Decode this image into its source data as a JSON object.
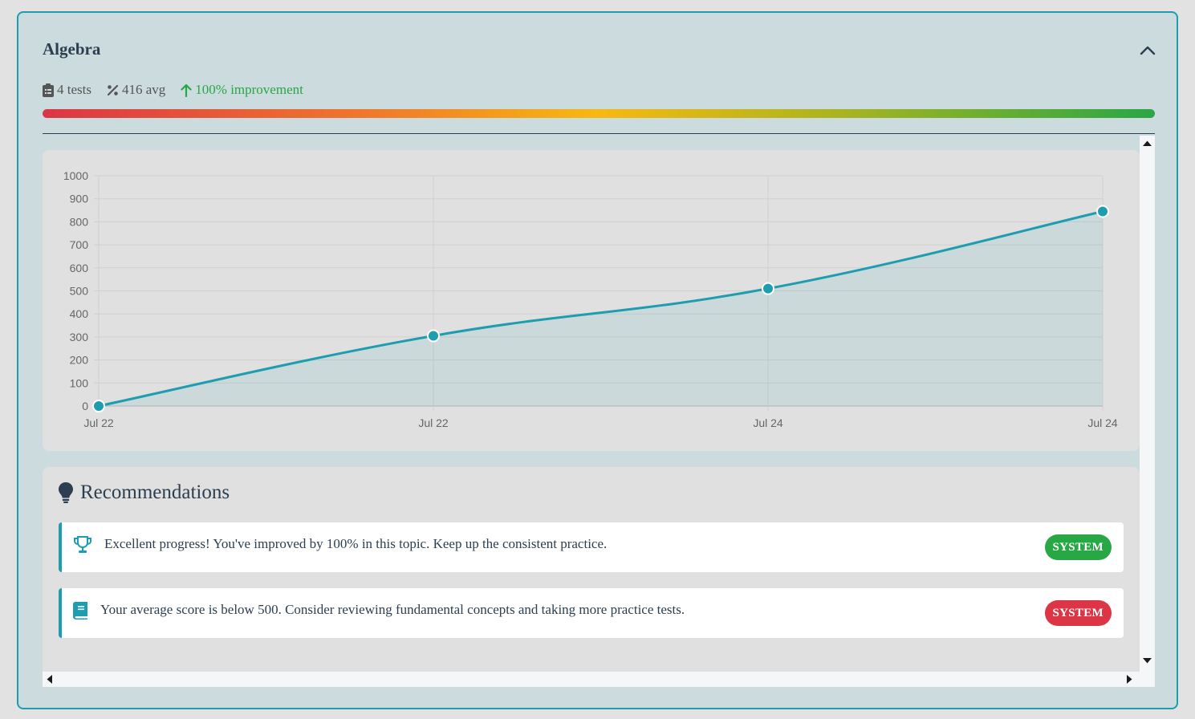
{
  "topic": {
    "title": "Algebra",
    "stats": {
      "tests": "4 tests",
      "avg": "416 avg",
      "improvement": "100% improvement"
    }
  },
  "colors": {
    "accent": "#1e9db0",
    "success": "#28a745",
    "danger": "#dc3545",
    "warning": "#f7b90f",
    "text": "#2c3e50"
  },
  "chart_data": {
    "type": "area",
    "x": [
      "Jul 22",
      "Jul 22",
      "Jul 24",
      "Jul 24"
    ],
    "series": [
      {
        "values": [
          0,
          305,
          510,
          845
        ]
      }
    ],
    "ylim": [
      0,
      1000
    ],
    "yticks": [
      0,
      100,
      200,
      300,
      400,
      500,
      600,
      700,
      800,
      900,
      1000
    ],
    "grid": true,
    "xlabel": "",
    "ylabel": "",
    "title": ""
  },
  "recommendations": {
    "title": "Recommendations",
    "items": [
      {
        "icon": "trophy-icon",
        "text": "Excellent progress! You've improved by 100% in this topic. Keep up the consistent practice.",
        "badge": "SYSTEM",
        "badge_color": "#28a745"
      },
      {
        "icon": "book-icon",
        "text": "Your average score is below 500. Consider reviewing fundamental concepts and taking more practice tests.",
        "badge": "SYSTEM",
        "badge_color": "#dc3545"
      }
    ]
  }
}
